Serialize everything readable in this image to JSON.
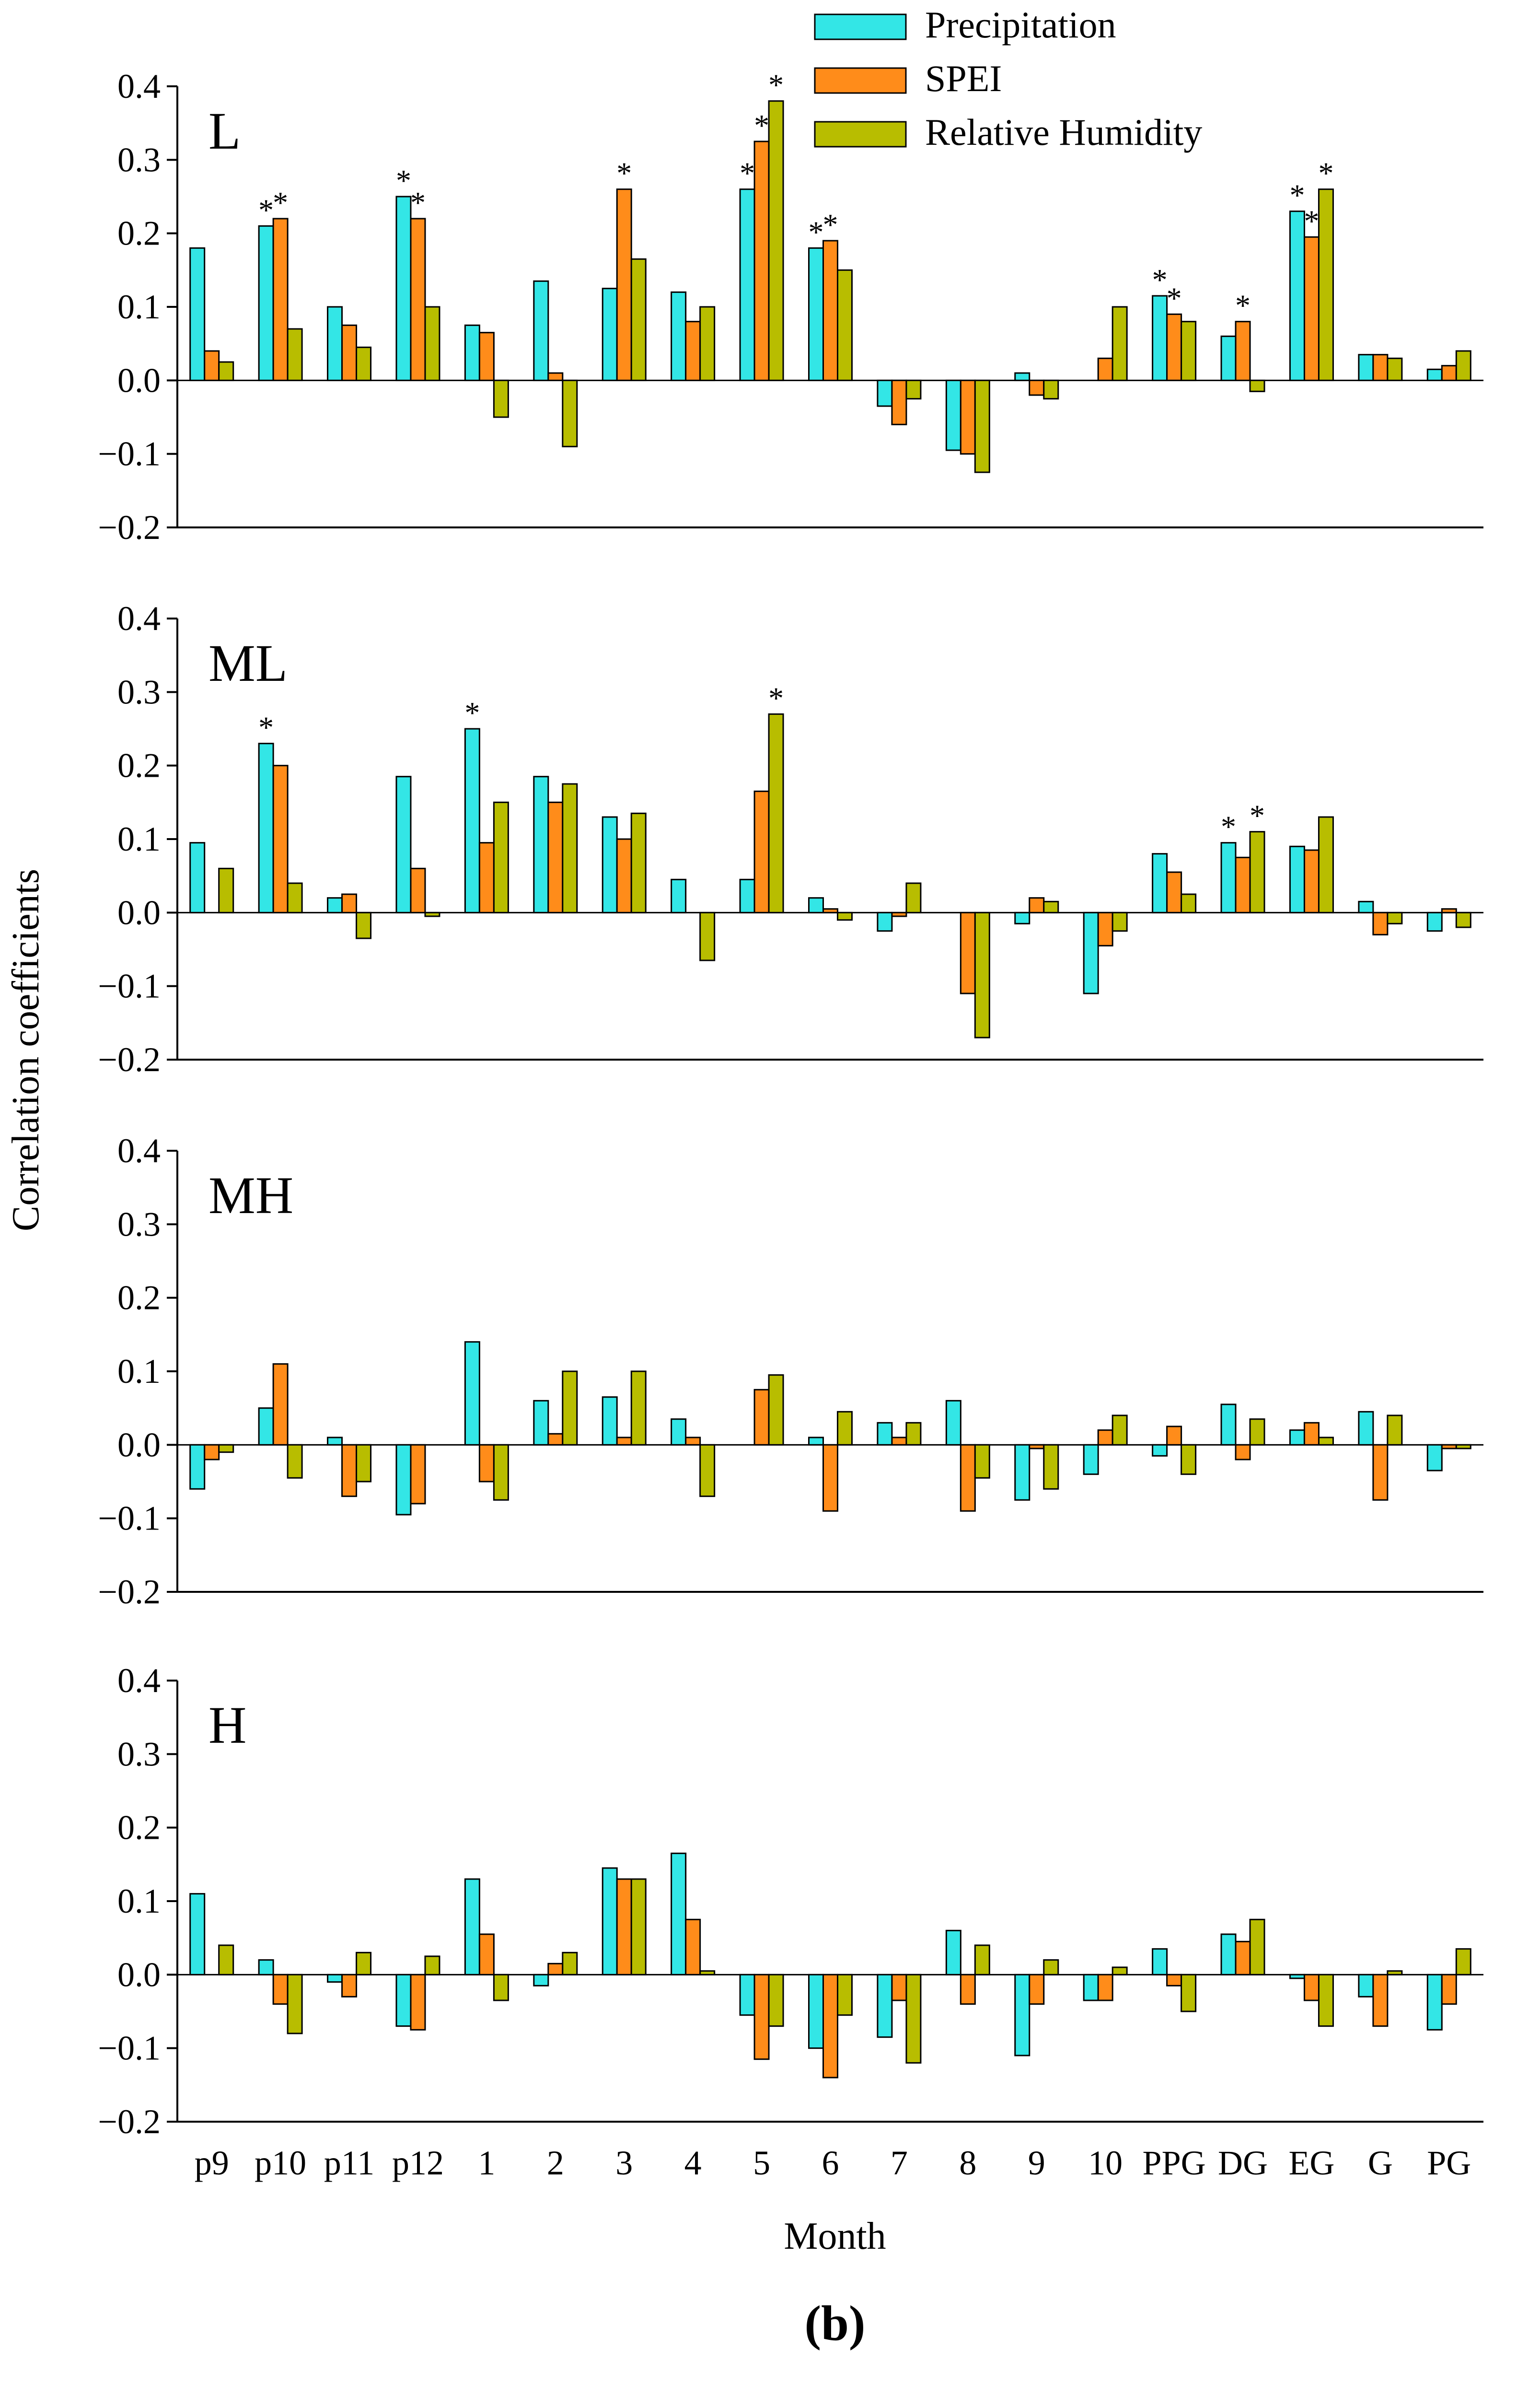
{
  "chart_data": {
    "type": "bar",
    "ylabel": "Correlation coefficients",
    "xlabel": "Month",
    "subfigure_label": "(b)",
    "ylim": [
      -0.2,
      0.4
    ],
    "yticks": [
      "0.4",
      "0.3",
      "0.2",
      "0.1",
      "0.0",
      "−0.1",
      "−0.2"
    ],
    "categories": [
      "p9",
      "p10",
      "p11",
      "p12",
      "1",
      "2",
      "3",
      "4",
      "5",
      "6",
      "7",
      "8",
      "9",
      "10",
      "PPG",
      "DG",
      "EG",
      "G",
      "PG"
    ],
    "legend": [
      {
        "name": "Precipitation",
        "color": "#33e6e6"
      },
      {
        "name": "SPEI",
        "color": "#ff8c1a"
      },
      {
        "name": "Relative Humidity",
        "color": "#b8bd00"
      }
    ],
    "significance_marker": "*",
    "panels": [
      {
        "label": "L",
        "series": [
          {
            "name": "Precipitation",
            "values": [
              0.18,
              0.21,
              0.1,
              0.25,
              0.075,
              0.135,
              0.125,
              0.12,
              0.26,
              0.18,
              -0.035,
              -0.095,
              0.01,
              0.0,
              0.115,
              0.06,
              0.23,
              0.035,
              0.015
            ]
          },
          {
            "name": "SPEI",
            "values": [
              0.04,
              0.22,
              0.075,
              0.22,
              0.065,
              0.01,
              0.26,
              0.08,
              0.325,
              0.19,
              -0.06,
              -0.1,
              -0.02,
              0.03,
              0.09,
              0.08,
              0.195,
              0.035,
              0.02
            ]
          },
          {
            "name": "Relative Humidity",
            "values": [
              0.025,
              0.07,
              0.045,
              0.1,
              -0.05,
              -0.09,
              0.165,
              0.1,
              0.38,
              0.15,
              -0.025,
              -0.125,
              -0.025,
              0.1,
              0.08,
              -0.015,
              0.26,
              0.03,
              0.04
            ]
          }
        ],
        "significant": [
          {
            "category": "p10",
            "series": "Precipitation"
          },
          {
            "category": "p10",
            "series": "SPEI"
          },
          {
            "category": "p12",
            "series": "Precipitation"
          },
          {
            "category": "p12",
            "series": "SPEI"
          },
          {
            "category": "3",
            "series": "SPEI"
          },
          {
            "category": "5",
            "series": "Precipitation"
          },
          {
            "category": "5",
            "series": "SPEI"
          },
          {
            "category": "5",
            "series": "Relative Humidity"
          },
          {
            "category": "6",
            "series": "Precipitation"
          },
          {
            "category": "6",
            "series": "SPEI"
          },
          {
            "category": "PPG",
            "series": "Precipitation"
          },
          {
            "category": "PPG",
            "series": "SPEI"
          },
          {
            "category": "DG",
            "series": "SPEI"
          },
          {
            "category": "EG",
            "series": "Precipitation"
          },
          {
            "category": "EG",
            "series": "SPEI"
          },
          {
            "category": "EG",
            "series": "Relative Humidity"
          }
        ]
      },
      {
        "label": "ML",
        "series": [
          {
            "name": "Precipitation",
            "values": [
              0.095,
              0.23,
              0.02,
              0.185,
              0.25,
              0.185,
              0.13,
              0.045,
              0.045,
              0.02,
              -0.025,
              0.0,
              -0.015,
              -0.11,
              0.08,
              0.095,
              0.09,
              0.015,
              -0.025
            ]
          },
          {
            "name": "SPEI",
            "values": [
              0.0,
              0.2,
              0.025,
              0.06,
              0.095,
              0.15,
              0.1,
              0.0,
              0.165,
              0.005,
              -0.005,
              -0.11,
              0.02,
              -0.045,
              0.055,
              0.075,
              0.085,
              -0.03,
              0.005
            ]
          },
          {
            "name": "Relative Humidity",
            "values": [
              0.06,
              0.04,
              -0.035,
              -0.005,
              0.15,
              0.175,
              0.135,
              -0.065,
              0.27,
              -0.01,
              0.04,
              -0.17,
              0.015,
              -0.025,
              0.025,
              0.11,
              0.13,
              -0.015,
              -0.02
            ]
          }
        ],
        "significant": [
          {
            "category": "p10",
            "series": "Precipitation"
          },
          {
            "category": "1",
            "series": "Precipitation"
          },
          {
            "category": "5",
            "series": "Relative Humidity"
          },
          {
            "category": "DG",
            "series": "Precipitation"
          },
          {
            "category": "DG",
            "series": "Relative Humidity"
          }
        ]
      },
      {
        "label": "MH",
        "series": [
          {
            "name": "Precipitation",
            "values": [
              -0.06,
              0.05,
              0.01,
              -0.095,
              0.14,
              0.06,
              0.065,
              0.035,
              0.0,
              0.01,
              0.03,
              0.06,
              -0.075,
              -0.04,
              -0.015,
              0.055,
              0.02,
              0.045,
              -0.035
            ]
          },
          {
            "name": "SPEI",
            "values": [
              -0.02,
              0.11,
              -0.07,
              -0.08,
              -0.05,
              0.015,
              0.01,
              0.01,
              0.075,
              -0.09,
              0.01,
              -0.09,
              -0.005,
              0.02,
              0.025,
              -0.02,
              0.03,
              -0.075,
              -0.005
            ]
          },
          {
            "name": "Relative Humidity",
            "values": [
              -0.01,
              -0.045,
              -0.05,
              0.0,
              -0.075,
              0.1,
              0.1,
              -0.07,
              0.095,
              0.045,
              0.03,
              -0.045,
              -0.06,
              0.04,
              -0.04,
              0.035,
              0.01,
              0.04,
              -0.005
            ]
          }
        ],
        "significant": []
      },
      {
        "label": "H",
        "series": [
          {
            "name": "Precipitation",
            "values": [
              0.11,
              0.02,
              -0.01,
              -0.07,
              0.13,
              -0.015,
              0.145,
              0.165,
              -0.055,
              -0.1,
              -0.085,
              0.06,
              -0.11,
              -0.035,
              0.035,
              0.055,
              -0.005,
              -0.03,
              -0.075
            ]
          },
          {
            "name": "SPEI",
            "values": [
              0.0,
              -0.04,
              -0.03,
              -0.075,
              0.055,
              0.015,
              0.13,
              0.075,
              -0.115,
              -0.14,
              -0.035,
              -0.04,
              -0.04,
              -0.035,
              -0.015,
              0.045,
              -0.035,
              -0.07,
              -0.04
            ]
          },
          {
            "name": "Relative Humidity",
            "values": [
              0.04,
              -0.08,
              0.03,
              0.025,
              -0.035,
              0.03,
              0.13,
              0.005,
              -0.07,
              -0.055,
              -0.12,
              0.04,
              0.02,
              0.01,
              -0.05,
              0.075,
              -0.07,
              0.005,
              0.035
            ]
          }
        ],
        "significant": []
      }
    ]
  }
}
